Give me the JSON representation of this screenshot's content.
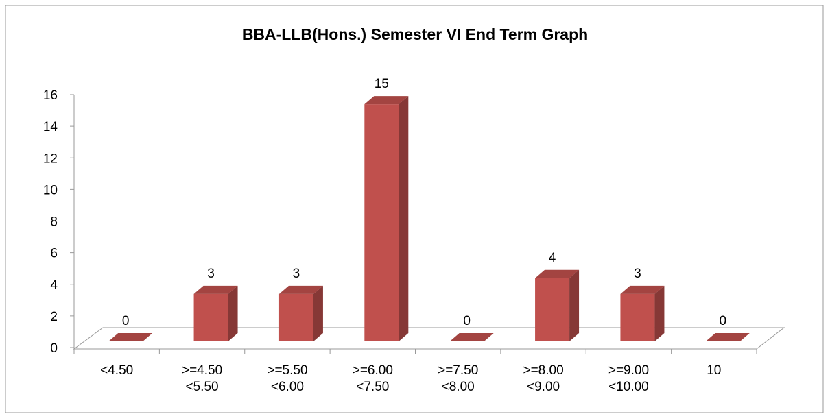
{
  "chart_data": {
    "type": "bar3d",
    "title": "BBA-LLB(Hons.) Semester  VI End Term Graph",
    "categories": [
      "<4.50",
      ">=4.50 <5.50",
      ">=5.50 <6.00",
      ">=6.00 <7.50",
      ">=7.50 <8.00",
      ">=8.00 <9.00",
      ">=9.00 <10.00",
      "10"
    ],
    "values": [
      0,
      3,
      3,
      15,
      0,
      4,
      3,
      0
    ],
    "color": "#c0504d",
    "ylim": [
      0,
      16
    ],
    "yticks": [
      0,
      2,
      4,
      6,
      8,
      10,
      12,
      14,
      16
    ]
  }
}
